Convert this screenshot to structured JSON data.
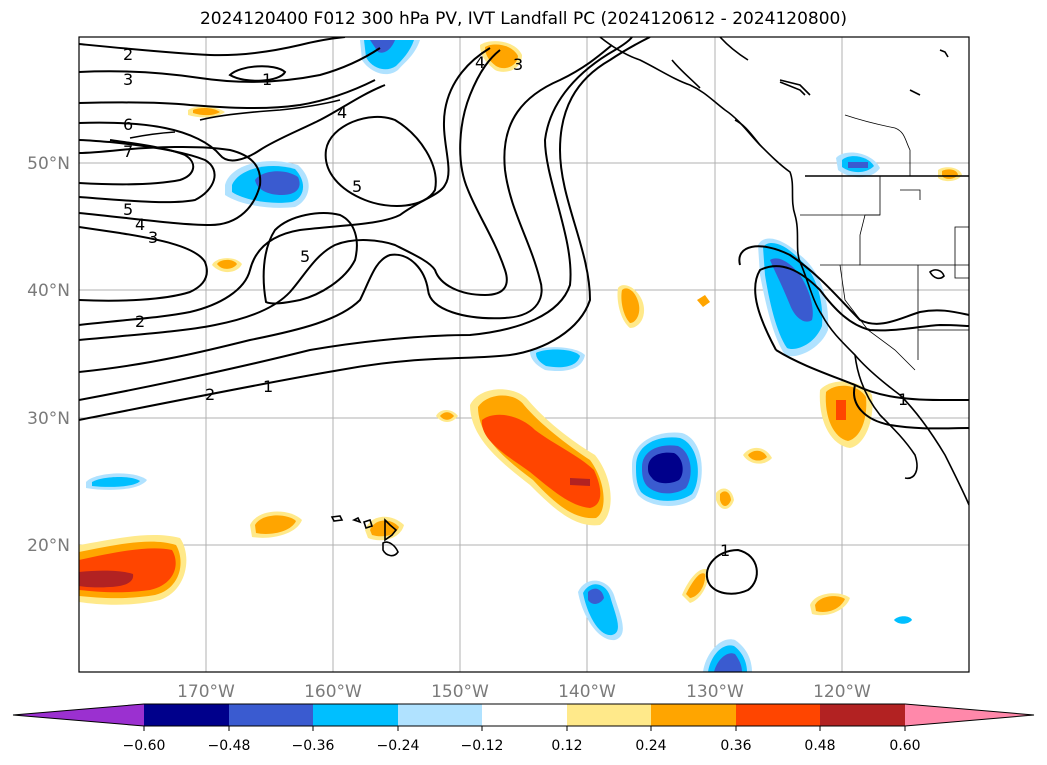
{
  "title": "2024120400 F012 300 hPa PV, IVT Landfall PC (2024120612 - 2024120800)",
  "map": {
    "lon_labels": [
      "170°W",
      "160°W",
      "150°W",
      "140°W",
      "130°W",
      "120°W"
    ],
    "lat_labels": [
      "50°N",
      "40°N",
      "30°N",
      "20°N"
    ],
    "pv_contour_labels": [
      "1",
      "2",
      "3",
      "4",
      "5",
      "6",
      "7"
    ]
  },
  "colorbar": {
    "ticks": [
      "−0.60",
      "−0.48",
      "−0.36",
      "−0.24",
      "−0.12",
      "0.12",
      "0.24",
      "0.36",
      "0.48",
      "0.60"
    ],
    "colors": {
      "below_min": "#9b30d0",
      "n060": "#00008b",
      "n048": "#3a5bd0",
      "n036": "#00bfff",
      "n024": "#b0e2ff",
      "neutral": "#ffffff",
      "p012": "#ffe98a",
      "p024": "#ffa500",
      "p036": "#ff4500",
      "p048": "#b22222",
      "above_max": "#ff88aa"
    }
  }
}
